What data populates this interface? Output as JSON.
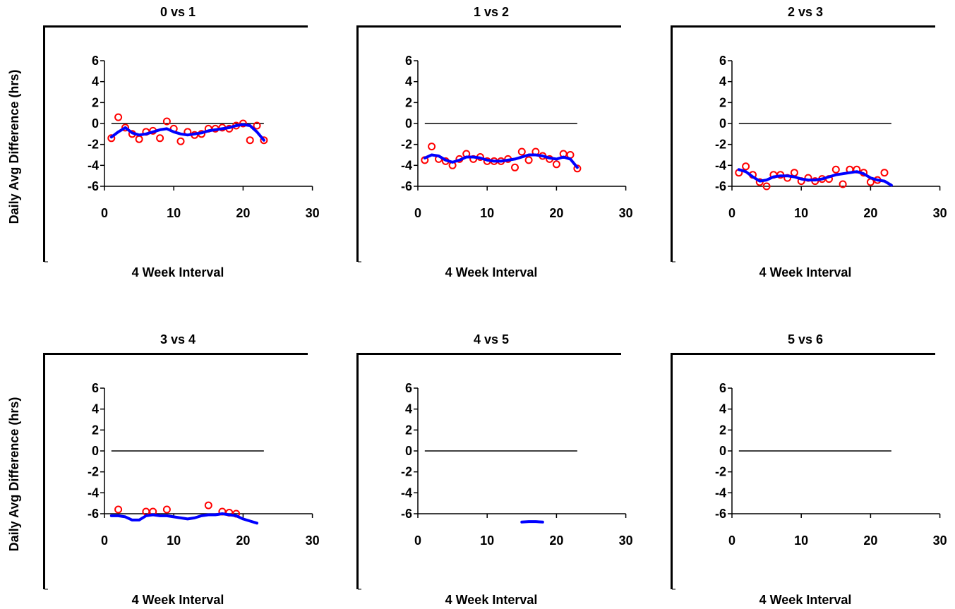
{
  "chart_data": [
    {
      "type": "scatter",
      "title": "0 vs 1",
      "xlabel": "4 Week Interval",
      "ylabel": "Daily Avg Difference (hrs)",
      "xlim": [
        0,
        30
      ],
      "ylim": [
        -6,
        6
      ],
      "xticks": [
        0,
        10,
        20,
        30
      ],
      "yticks": [
        6,
        4,
        2,
        0,
        -2,
        -4,
        -6
      ],
      "grid": false,
      "reference_line": {
        "y": 0,
        "x_from": 1,
        "x_to": 23,
        "color": "#000000"
      },
      "series": [
        {
          "type": "scatter",
          "color": "#ff0000",
          "x": [
            1,
            2,
            3,
            4,
            5,
            6,
            7,
            8,
            9,
            10,
            11,
            12,
            13,
            14,
            15,
            16,
            17,
            18,
            19,
            20,
            21,
            22,
            23
          ],
          "y": [
            -1.4,
            0.6,
            -0.4,
            -1.0,
            -1.5,
            -0.8,
            -0.7,
            -1.4,
            0.2,
            -0.5,
            -1.7,
            -0.8,
            -1.1,
            -1.0,
            -0.5,
            -0.5,
            -0.4,
            -0.5,
            -0.2,
            0.0,
            -1.6,
            -0.2,
            -1.6
          ]
        },
        {
          "type": "line",
          "color": "#0000ff",
          "x": [
            1,
            2,
            3,
            4,
            5,
            6,
            7,
            8,
            9,
            10,
            11,
            12,
            13,
            14,
            15,
            16,
            17,
            18,
            19,
            20,
            21,
            22,
            23
          ],
          "y": [
            -1.3,
            -0.8,
            -0.4,
            -0.9,
            -1.1,
            -1.0,
            -0.8,
            -0.6,
            -0.5,
            -0.8,
            -1.0,
            -1.1,
            -1.0,
            -0.9,
            -0.7,
            -0.6,
            -0.5,
            -0.4,
            -0.2,
            -0.1,
            -0.2,
            -0.8,
            -1.6
          ]
        }
      ]
    },
    {
      "type": "scatter",
      "title": "1 vs 2",
      "xlabel": "4 Week Interval",
      "ylabel": "",
      "xlim": [
        0,
        30
      ],
      "ylim": [
        -6,
        6
      ],
      "xticks": [
        0,
        10,
        20,
        30
      ],
      "yticks": [
        6,
        4,
        2,
        0,
        -2,
        -4,
        -6
      ],
      "grid": false,
      "reference_line": {
        "y": 0,
        "x_from": 1,
        "x_to": 23,
        "color": "#000000"
      },
      "series": [
        {
          "type": "scatter",
          "color": "#ff0000",
          "x": [
            1,
            2,
            3,
            4,
            5,
            6,
            7,
            8,
            9,
            10,
            11,
            12,
            13,
            14,
            15,
            16,
            17,
            18,
            19,
            20,
            21,
            22,
            23
          ],
          "y": [
            -3.5,
            -2.2,
            -3.4,
            -3.6,
            -4.0,
            -3.4,
            -2.9,
            -3.4,
            -3.2,
            -3.6,
            -3.6,
            -3.6,
            -3.4,
            -4.2,
            -2.7,
            -3.5,
            -2.7,
            -3.1,
            -3.4,
            -3.9,
            -2.9,
            -3.0,
            -4.3
          ]
        },
        {
          "type": "line",
          "color": "#0000ff",
          "x": [
            1,
            2,
            3,
            4,
            5,
            6,
            7,
            8,
            9,
            10,
            11,
            12,
            13,
            14,
            15,
            16,
            17,
            18,
            19,
            20,
            21,
            22,
            23
          ],
          "y": [
            -3.3,
            -3.0,
            -3.1,
            -3.5,
            -3.7,
            -3.5,
            -3.2,
            -3.2,
            -3.3,
            -3.5,
            -3.6,
            -3.6,
            -3.5,
            -3.4,
            -3.2,
            -3.0,
            -3.0,
            -3.1,
            -3.3,
            -3.4,
            -3.2,
            -3.4,
            -4.2
          ]
        }
      ]
    },
    {
      "type": "scatter",
      "title": "2 vs 3",
      "xlabel": "4 Week Interval",
      "ylabel": "",
      "xlim": [
        0,
        30
      ],
      "ylim": [
        -6,
        6
      ],
      "xticks": [
        0,
        10,
        20,
        30
      ],
      "yticks": [
        6,
        4,
        2,
        0,
        -2,
        -4,
        -6
      ],
      "grid": false,
      "reference_line": {
        "y": 0,
        "x_from": 1,
        "x_to": 23,
        "color": "#000000"
      },
      "series": [
        {
          "type": "scatter",
          "color": "#ff0000",
          "x": [
            1,
            2,
            3,
            4,
            5,
            6,
            7,
            8,
            9,
            10,
            11,
            12,
            13,
            14,
            15,
            16,
            17,
            18,
            19,
            20,
            21,
            22
          ],
          "y": [
            -4.7,
            -4.1,
            -4.9,
            -5.6,
            -6.0,
            -4.9,
            -4.9,
            -5.2,
            -4.7,
            -5.5,
            -5.2,
            -5.5,
            -5.3,
            -5.3,
            -4.4,
            -5.8,
            -4.4,
            -4.4,
            -4.7,
            -5.6,
            -5.4,
            -4.7
          ]
        },
        {
          "type": "line",
          "color": "#0000ff",
          "x": [
            1,
            2,
            3,
            4,
            5,
            6,
            7,
            8,
            9,
            10,
            11,
            12,
            13,
            14,
            15,
            16,
            17,
            18,
            19,
            20,
            21,
            22,
            23
          ],
          "y": [
            -4.4,
            -4.6,
            -5.1,
            -5.5,
            -5.4,
            -5.1,
            -5.0,
            -5.0,
            -5.1,
            -5.3,
            -5.4,
            -5.4,
            -5.3,
            -5.1,
            -4.9,
            -4.8,
            -4.7,
            -4.6,
            -4.8,
            -5.2,
            -5.4,
            -5.5,
            -5.9
          ]
        }
      ]
    },
    {
      "type": "scatter",
      "title": "3 vs 4",
      "xlabel": "4 Week Interval",
      "ylabel": "Daily Avg Difference (hrs)",
      "xlim": [
        0,
        30
      ],
      "ylim": [
        -6,
        6
      ],
      "xticks": [
        0,
        10,
        20,
        30
      ],
      "yticks": [
        6,
        4,
        2,
        0,
        -2,
        -4,
        -6
      ],
      "grid": false,
      "reference_line": {
        "y": 0,
        "x_from": 1,
        "x_to": 23,
        "color": "#000000"
      },
      "series": [
        {
          "type": "scatter",
          "color": "#ff0000",
          "x": [
            2,
            6,
            7,
            9,
            15,
            17,
            18,
            19
          ],
          "y": [
            -5.6,
            -5.8,
            -5.8,
            -5.6,
            -5.2,
            -5.8,
            -5.9,
            -6.0
          ]
        },
        {
          "type": "line",
          "color": "#0000ff",
          "x": [
            1,
            2,
            3,
            4,
            5,
            6,
            7,
            8,
            9,
            10,
            11,
            12,
            13,
            14,
            15,
            16,
            17,
            18,
            19,
            20,
            21,
            22
          ],
          "y": [
            -6.2,
            -6.2,
            -6.3,
            -6.6,
            -6.6,
            -6.2,
            -6.1,
            -6.2,
            -6.2,
            -6.3,
            -6.4,
            -6.5,
            -6.4,
            -6.2,
            -6.1,
            -6.1,
            -6.0,
            -6.1,
            -6.2,
            -6.5,
            -6.7,
            -6.9
          ]
        }
      ]
    },
    {
      "type": "scatter",
      "title": "4 vs 5",
      "xlabel": "4 Week Interval",
      "ylabel": "",
      "xlim": [
        0,
        30
      ],
      "ylim": [
        -6,
        6
      ],
      "xticks": [
        0,
        10,
        20,
        30
      ],
      "yticks": [
        6,
        4,
        2,
        0,
        -2,
        -4,
        -6
      ],
      "grid": false,
      "reference_line": {
        "y": 0,
        "x_from": 1,
        "x_to": 23,
        "color": "#000000"
      },
      "series": [
        {
          "type": "scatter",
          "color": "#ff0000",
          "x": [],
          "y": []
        },
        {
          "type": "line",
          "color": "#0000ff",
          "x": [
            15,
            16,
            17,
            18
          ],
          "y": [
            -6.8,
            -6.75,
            -6.75,
            -6.8
          ]
        }
      ]
    },
    {
      "type": "scatter",
      "title": "5 vs 6",
      "xlabel": "4 Week Interval",
      "ylabel": "",
      "xlim": [
        0,
        30
      ],
      "ylim": [
        -6,
        6
      ],
      "xticks": [
        0,
        10,
        20,
        30
      ],
      "yticks": [
        6,
        4,
        2,
        0,
        -2,
        -4,
        -6
      ],
      "grid": false,
      "reference_line": {
        "y": 0,
        "x_from": 1,
        "x_to": 23,
        "color": "#000000"
      },
      "series": [
        {
          "type": "scatter",
          "color": "#ff0000",
          "x": [],
          "y": []
        },
        {
          "type": "line",
          "color": "#0000ff",
          "x": [],
          "y": []
        }
      ]
    }
  ]
}
